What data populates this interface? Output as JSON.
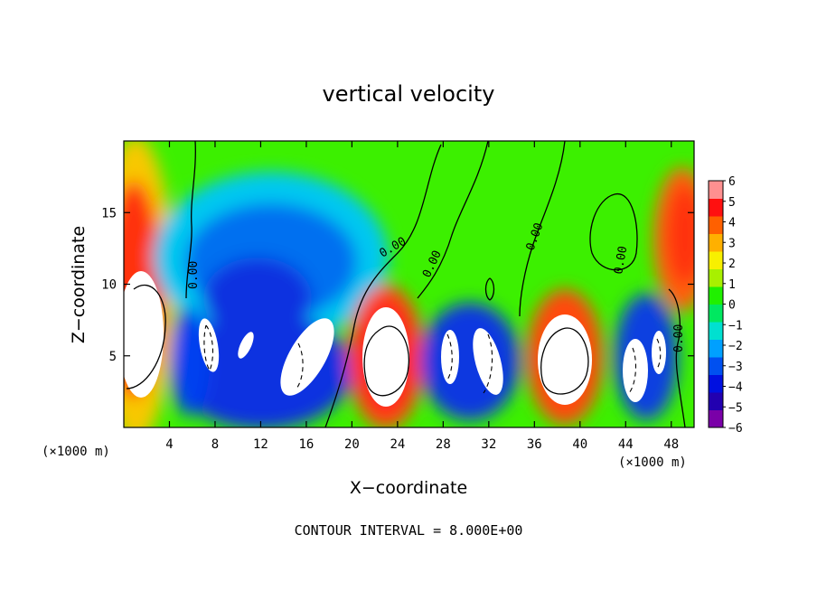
{
  "chart_data": {
    "type": "heatmap",
    "title": "vertical velocity",
    "xlabel": "X−coordinate",
    "ylabel": "Z−coordinate",
    "x_unit": "(×1000 m)",
    "x_unit_right": "(×1000 m)",
    "x_ticks": [
      "4",
      "8",
      "12",
      "16",
      "20",
      "24",
      "28",
      "32",
      "36",
      "40",
      "44",
      "48"
    ],
    "y_ticks": [
      "5",
      "10",
      "15"
    ],
    "xlim": [
      0,
      50
    ],
    "ylim": [
      0,
      20
    ],
    "colorbar": {
      "ticks": [
        "6",
        "5",
        "4",
        "3",
        "2",
        "1",
        "0",
        "−1",
        "−2",
        "−3",
        "−4",
        "−5",
        "−6"
      ],
      "min": -6,
      "max": 6,
      "colors": [
        "#7a00a8",
        "#2200b0",
        "#0010e0",
        "#0050f0",
        "#00a0ff",
        "#00e0d0",
        "#00e860",
        "#20f000",
        "#a8f000",
        "#f8f000",
        "#ffb000",
        "#ff6000",
        "#ff1010",
        "#ff9090"
      ]
    },
    "contour_labels": [
      "0.00",
      "0.00",
      "0.00",
      "0.00",
      "0.00",
      "0.00"
    ],
    "contour_interval_text": "CONTOUR INTERVAL = 8.000E+00",
    "features": [
      {
        "kind": "updraft",
        "x": 2,
        "z": 6,
        "rx": 2.0,
        "rz": 5.0
      },
      {
        "kind": "downdraft",
        "x": 10,
        "z": 5,
        "rx": 5.5,
        "rz": 4.5
      },
      {
        "kind": "downdraft",
        "x": 14,
        "z": 11,
        "rx": 6.0,
        "rz": 5.0
      },
      {
        "kind": "updraft",
        "x": 23,
        "z": 5,
        "rx": 3.5,
        "rz": 5.0
      },
      {
        "kind": "downdraft",
        "x": 29,
        "z": 5,
        "rx": 4.5,
        "rz": 4.0
      },
      {
        "kind": "updraft",
        "x": 38,
        "z": 5,
        "rx": 3.5,
        "rz": 4.5
      },
      {
        "kind": "downdraft",
        "x": 45,
        "z": 5,
        "rx": 3.5,
        "rz": 4.5
      },
      {
        "kind": "updraft",
        "x": 48.5,
        "z": 12,
        "rx": 2.5,
        "rz": 5.0
      }
    ]
  }
}
